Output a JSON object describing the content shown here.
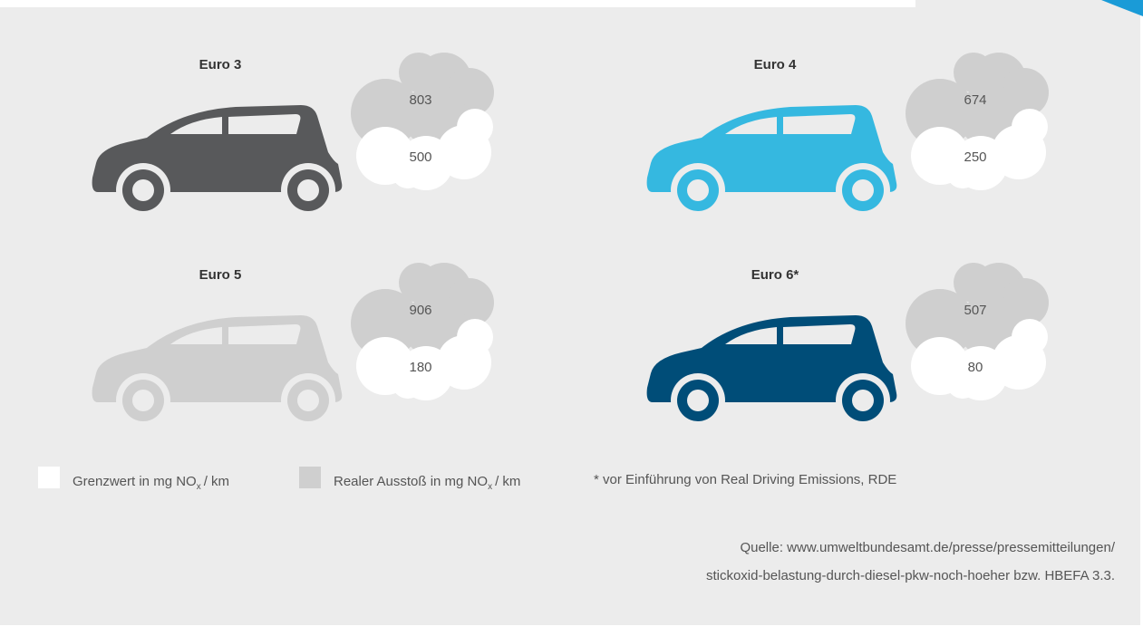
{
  "panels": [
    {
      "label": "Euro 3",
      "real": "803",
      "limit": "500",
      "color": "#58595b"
    },
    {
      "label": "Euro 4",
      "real": "674",
      "limit": "250",
      "color": "#35b8e0"
    },
    {
      "label": "Euro 5",
      "real": "906",
      "limit": "180",
      "color": "#cfcfcf"
    },
    {
      "label": "Euro 6*",
      "real": "507",
      "limit": "80",
      "color": "#004d78"
    }
  ],
  "legend": [
    {
      "before": "Grenzwert in mg NO",
      "sub": "x",
      "after": "/ km",
      "color": "#ffffff"
    },
    {
      "before": "Realer Ausstoß in mg NO",
      "sub": "x",
      "after": "/ km",
      "color": "#cfcfcf"
    }
  ],
  "note": "* vor Einführung von Real Driving Emissions, RDE",
  "source": [
    "Quelle: www.umweltbundesamt.de/presse/pressemitteilungen/",
    "stickoxid-belastung-durch-diesel-pkw-noch-hoeher bzw. HBEFA 3.3."
  ]
}
